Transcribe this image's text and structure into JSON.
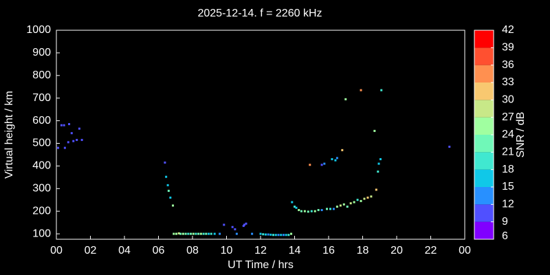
{
  "chart_data": {
    "type": "scatter",
    "title": "2025-12-14. f = 2260 kHz",
    "x_label": "UT Time / hrs",
    "y_label": "Virtual height / km",
    "colorbar_label": "SNR / dB",
    "xlim": [
      0,
      24
    ],
    "xticks": [
      {
        "value": 0,
        "label": "00"
      },
      {
        "value": 2,
        "label": "02"
      },
      {
        "value": 4,
        "label": "04"
      },
      {
        "value": 6,
        "label": "06"
      },
      {
        "value": 8,
        "label": "08"
      },
      10,
      12,
      14,
      16,
      18,
      20,
      22,
      {
        "value": 24,
        "label": "00"
      }
    ],
    "ylim": [
      76,
      1000
    ],
    "yticks": [
      100,
      200,
      300,
      400,
      500,
      600,
      700,
      800,
      900,
      1000
    ],
    "clim": [
      6,
      42
    ],
    "cticks": [
      6,
      9,
      12,
      15,
      18,
      21,
      24,
      27,
      30,
      33,
      36,
      39,
      42
    ],
    "colors": [
      "#8000ff",
      "#5050ff",
      "#2890ff",
      "#10c8e8",
      "#40e8d0",
      "#70f8b8",
      "#a0ffa0",
      "#c8e888",
      "#f8c870",
      "#ff9050",
      "#ff5030",
      "#ff0000"
    ],
    "x": [
      0.1,
      0.3,
      0.45,
      0.5,
      0.7,
      0.75,
      0.9,
      1.0,
      1.2,
      1.35,
      1.5,
      6.38,
      6.45,
      6.55,
      6.6,
      6.7,
      6.85,
      6.9,
      7.05,
      7.2,
      7.3,
      7.45,
      7.6,
      7.75,
      7.9,
      8.05,
      8.2,
      8.35,
      8.5,
      8.65,
      8.8,
      8.95,
      9.1,
      9.3,
      9.6,
      9.85,
      10.35,
      10.5,
      10.6,
      11.0,
      11.05,
      11.15,
      11.5,
      12.0,
      12.15,
      12.3,
      12.45,
      12.6,
      12.75,
      12.9,
      13.05,
      13.2,
      13.35,
      13.5,
      13.65,
      13.8,
      13.85,
      14.0,
      14.1,
      14.25,
      14.4,
      14.6,
      14.8,
      15.0,
      15.2,
      15.4,
      15.6,
      15.9,
      16.1,
      16.3,
      16.5,
      16.7,
      16.9,
      17.1,
      17.3,
      17.5,
      17.7,
      17.9,
      18.1,
      18.3,
      18.5,
      14.9,
      15.6,
      15.75,
      16.2,
      16.4,
      16.5,
      16.8,
      17.0,
      17.9,
      18.7,
      18.8,
      18.9,
      18.95,
      19.05,
      19.1,
      23.1
    ],
    "y": [
      480,
      580,
      580,
      480,
      505,
      585,
      545,
      510,
      515,
      565,
      515,
      415,
      352,
      315,
      290,
      260,
      225,
      100,
      100,
      102,
      100,
      100,
      100,
      100,
      100,
      100,
      100,
      100,
      100,
      100,
      100,
      100,
      100,
      100,
      100,
      140,
      130,
      120,
      100,
      135,
      140,
      145,
      100,
      100,
      98,
      97,
      97,
      96,
      95,
      95,
      95,
      95,
      95,
      95,
      95,
      100,
      240,
      220,
      215,
      205,
      200,
      200,
      198,
      200,
      200,
      205,
      205,
      210,
      210,
      210,
      220,
      225,
      230,
      220,
      235,
      240,
      250,
      245,
      255,
      260,
      265,
      405,
      405,
      410,
      430,
      425,
      435,
      470,
      695,
      735,
      555,
      295,
      375,
      410,
      430,
      735,
      485
    ],
    "snr": [
      10,
      10,
      10,
      10,
      10,
      10,
      10,
      10,
      10,
      10,
      10,
      11,
      17,
      17,
      22,
      16,
      25,
      24,
      25,
      27,
      22,
      25,
      22,
      19,
      22,
      25,
      18,
      22,
      25,
      19,
      22,
      16,
      19,
      17,
      12,
      10,
      10,
      10,
      13,
      10,
      10,
      10,
      13,
      16,
      19,
      16,
      13,
      16,
      19,
      16,
      13,
      16,
      13,
      16,
      19,
      26,
      17,
      19,
      16,
      25,
      22,
      25,
      22,
      19,
      25,
      22,
      14,
      22,
      19,
      14,
      25,
      28,
      25,
      22,
      28,
      25,
      19,
      26,
      28,
      31,
      28,
      34,
      11,
      13,
      16,
      16,
      13,
      30,
      25,
      34,
      24,
      30,
      19,
      17,
      16,
      19,
      10
    ]
  }
}
